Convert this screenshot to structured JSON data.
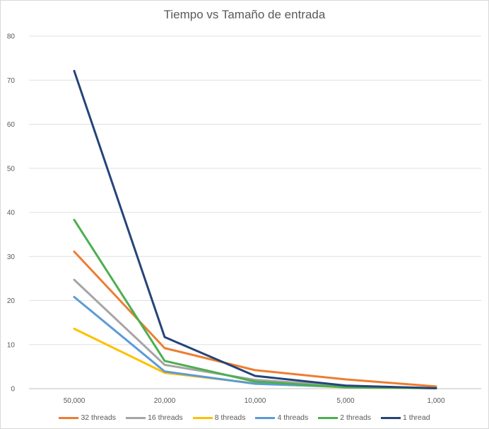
{
  "chart_data": {
    "type": "line",
    "title": "Tiempo vs Tamaño de entrada",
    "xlabel": "",
    "ylabel": "",
    "categories": [
      "50,000",
      "20,000",
      "10,000",
      "5,000",
      "1,000"
    ],
    "ylim": [
      0,
      80
    ],
    "yticks": [
      0,
      10,
      20,
      30,
      40,
      50,
      60,
      70,
      80
    ],
    "grid": true,
    "legend_position": "bottom",
    "series": [
      {
        "name": "32 threads",
        "color": "#ED7D31",
        "values": [
          31.1,
          9.2,
          4.2,
          2.1,
          0.5
        ]
      },
      {
        "name": "16 threads",
        "color": "#A5A5A5",
        "values": [
          24.7,
          5.4,
          2.0,
          0.6,
          0.1
        ]
      },
      {
        "name": "8 threads",
        "color": "#FFC000",
        "values": [
          13.6,
          3.6,
          1.2,
          0.3,
          0.1
        ]
      },
      {
        "name": "4 threads",
        "color": "#5B9BD5",
        "values": [
          20.8,
          3.9,
          1.1,
          0.4,
          0.1
        ]
      },
      {
        "name": "2 threads",
        "color": "#4CAF50",
        "values": [
          38.3,
          6.3,
          1.6,
          0.3,
          0.1
        ]
      },
      {
        "name": "1 thread",
        "color": "#264478",
        "values": [
          72.1,
          11.7,
          2.9,
          0.7,
          0.1
        ]
      }
    ]
  }
}
